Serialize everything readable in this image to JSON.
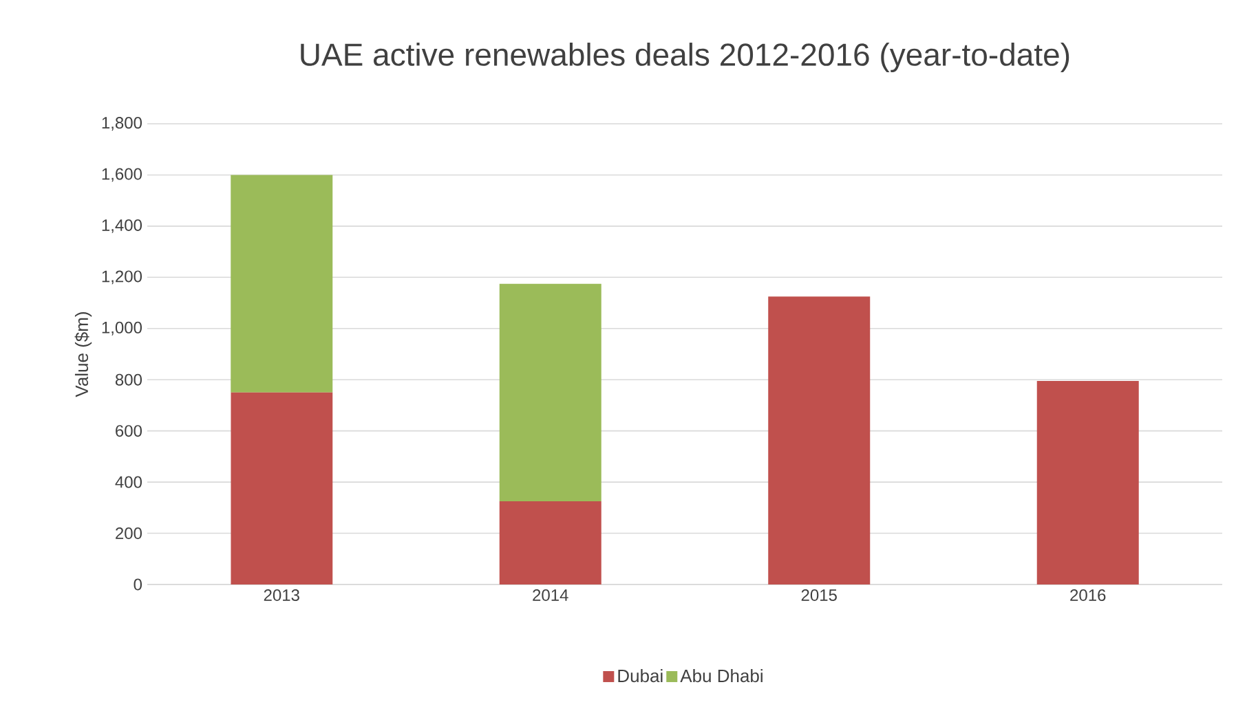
{
  "chart_data": {
    "type": "bar",
    "title": "UAE active renewables deals 2012-2016 (year-to-date)",
    "ylabel": "Value ($m)",
    "categories": [
      "2013",
      "2014",
      "2015",
      "2016"
    ],
    "series": [
      {
        "name": "Dubai",
        "color": "#c0504d",
        "values": [
          750,
          325,
          1125,
          795
        ]
      },
      {
        "name": "Abu Dhabi",
        "color": "#9bbb59",
        "values": [
          850,
          850,
          null,
          null
        ]
      }
    ],
    "stacked": true,
    "ylim": [
      0,
      1800
    ],
    "yticks": [
      0,
      200,
      400,
      600,
      800,
      {
        "value": 1000,
        "label": "1,000"
      },
      {
        "value": 1200,
        "label": "1,200"
      },
      {
        "value": 1400,
        "label": "1,400"
      },
      {
        "value": 1600,
        "label": "1,600"
      },
      {
        "value": 1800,
        "label": "1,800"
      }
    ],
    "grid": "y",
    "legend": "bottom"
  }
}
